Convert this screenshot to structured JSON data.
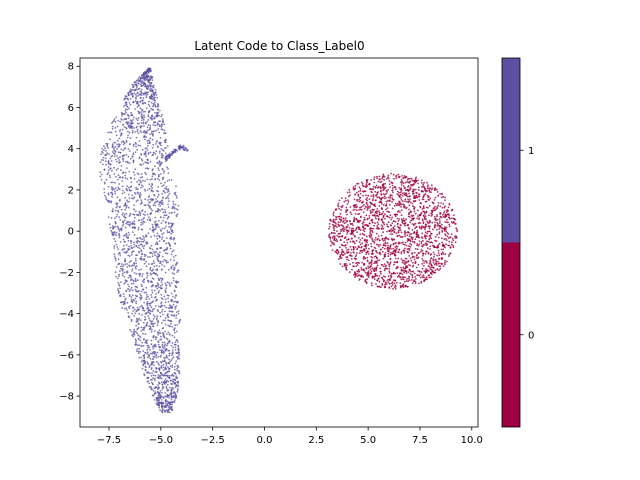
{
  "chart_data": {
    "type": "scatter",
    "title": "Latent Code to Class_Label0",
    "xlabel": "",
    "ylabel": "",
    "xlim": [
      -8.9,
      10.3
    ],
    "ylim": [
      -9.5,
      8.4
    ],
    "x_ticks": [
      -7.5,
      -5.0,
      -2.5,
      0.0,
      2.5,
      5.0,
      7.5,
      10.0
    ],
    "x_tick_labels": [
      "−7.5",
      "−5.0",
      "−2.5",
      "0.0",
      "2.5",
      "5.0",
      "7.5",
      "10.0"
    ],
    "y_ticks": [
      -8,
      -6,
      -4,
      -2,
      0,
      2,
      4,
      6,
      8
    ],
    "y_tick_labels": [
      "−8",
      "−6",
      "−4",
      "−2",
      "0",
      "2",
      "4",
      "6",
      "8"
    ],
    "grid": false,
    "series": [
      {
        "class": "1",
        "color": "#5e4fa2",
        "shape": "elongated vertical cluster",
        "profile_y": [
          -8.8,
          -8.0,
          -7.0,
          -6.0,
          -5.0,
          -4.0,
          -3.0,
          -2.0,
          -1.0,
          0.0,
          1.0,
          2.0,
          3.0,
          4.0,
          5.0,
          6.0,
          7.0,
          7.9
        ],
        "profile_xmin": [
          -5.0,
          -5.4,
          -5.8,
          -6.1,
          -6.4,
          -6.8,
          -7.1,
          -7.2,
          -7.3,
          -7.4,
          -7.6,
          -7.8,
          -8.0,
          -7.9,
          -7.5,
          -7.0,
          -6.5,
          -5.6
        ],
        "profile_xmax": [
          -4.5,
          -4.2,
          -4.1,
          -4.1,
          -4.2,
          -4.0,
          -4.2,
          -4.1,
          -4.3,
          -4.3,
          -4.1,
          -4.2,
          -4.5,
          -4.6,
          -4.8,
          -5.0,
          -5.3,
          -5.5
        ],
        "arm": {
          "x": [
            -4.8,
            -3.7
          ],
          "y": [
            3.5,
            4.1
          ]
        }
      },
      {
        "class": "0",
        "color": "#9e0142",
        "shape": "rounded blob",
        "center": [
          6.2,
          0.0
        ],
        "x_range": [
          3.1,
          9.3
        ],
        "y_range": [
          -2.8,
          2.8
        ]
      }
    ],
    "colorbar": {
      "ticks": [
        "0",
        "1"
      ],
      "colors": [
        "#9e0142",
        "#5e4fa2"
      ],
      "placement": "right"
    }
  }
}
